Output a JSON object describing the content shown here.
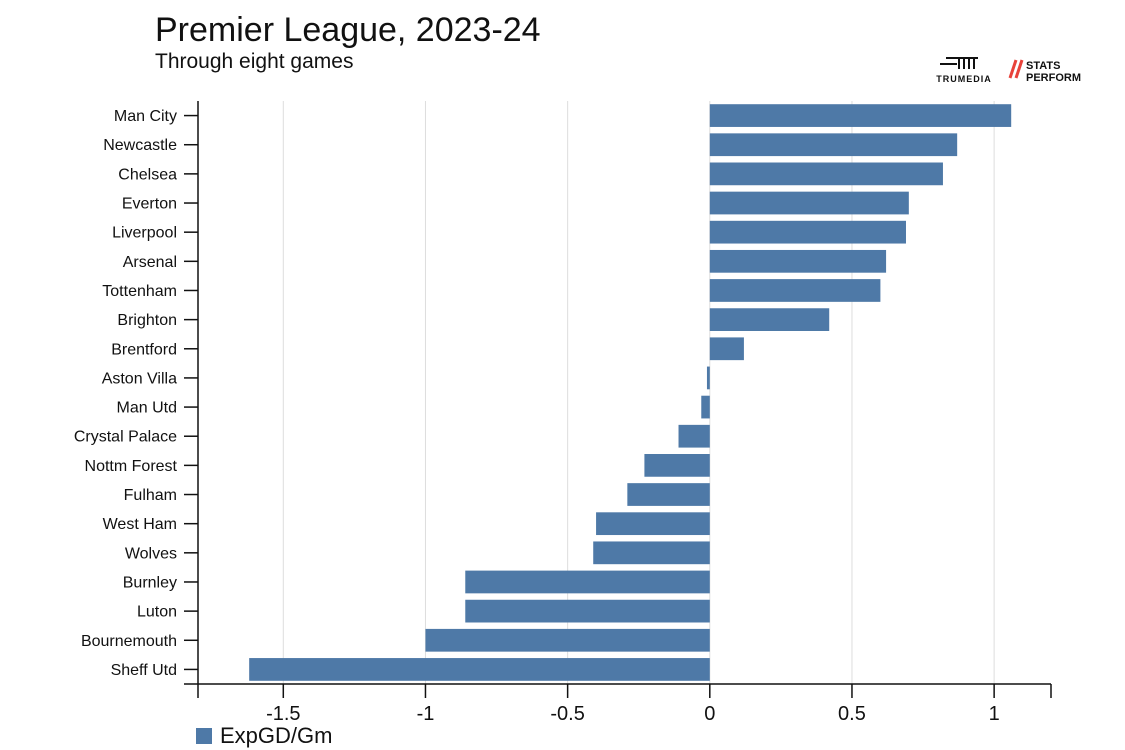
{
  "header": {
    "title": "Premier League, 2023-24",
    "subtitle": "Through eight games"
  },
  "logos": {
    "trumedia": "TRUMEDIA",
    "stats_perform_line1": "STATS",
    "stats_perform_line2": "PERFORM"
  },
  "colors": {
    "bar": "#4e79a7",
    "grid": "#dddddd",
    "axis": "#111111",
    "stats_perform_accent": "#e8423a"
  },
  "chart_data": {
    "type": "bar",
    "orientation": "horizontal",
    "title": "Premier League, 2023-24",
    "subtitle": "Through eight games",
    "xlabel": "",
    "ylabel": "",
    "xlim": [
      -1.8,
      1.2
    ],
    "x_ticks": [
      -1.5,
      -1,
      -0.5,
      0,
      0.5,
      1
    ],
    "x_tick_labels": [
      "-1.5",
      "-1",
      "-0.5",
      "0",
      "0.5",
      "1"
    ],
    "grid": "vertical",
    "legend_position": "bottom-left",
    "categories": [
      "Man City",
      "Newcastle",
      "Chelsea",
      "Everton",
      "Liverpool",
      "Arsenal",
      "Tottenham",
      "Brighton",
      "Brentford",
      "Aston Villa",
      "Man Utd",
      "Crystal Palace",
      "Nottm Forest",
      "Fulham",
      "West Ham",
      "Wolves",
      "Burnley",
      "Luton",
      "Bournemouth",
      "Sheff Utd"
    ],
    "series": [
      {
        "name": "ExpGD/Gm",
        "color": "#4e79a7",
        "values": [
          1.06,
          0.87,
          0.82,
          0.7,
          0.69,
          0.62,
          0.6,
          0.42,
          0.12,
          -0.01,
          -0.03,
          -0.11,
          -0.23,
          -0.29,
          -0.4,
          -0.41,
          -0.86,
          -0.86,
          -1.0,
          -1.62
        ]
      }
    ]
  }
}
